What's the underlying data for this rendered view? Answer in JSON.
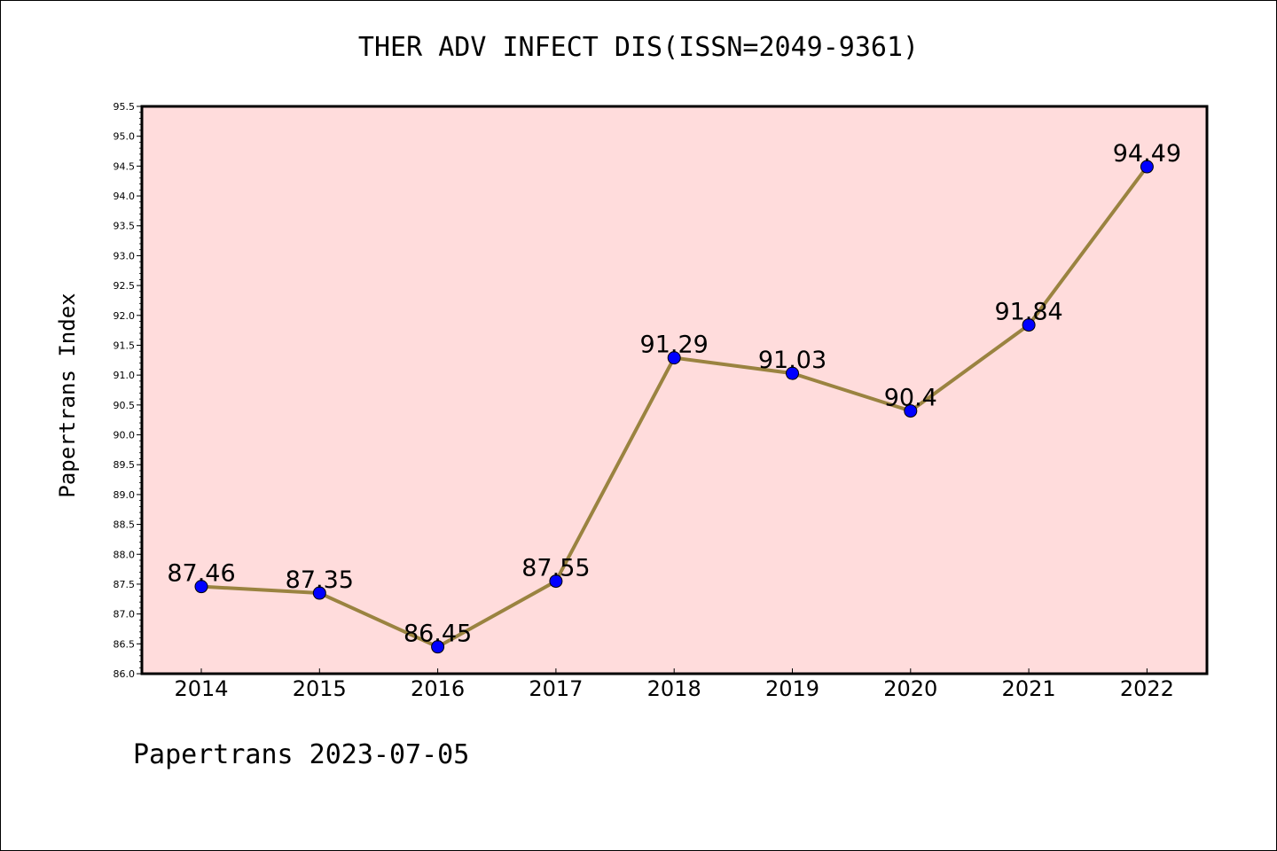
{
  "chart_data": {
    "type": "line",
    "title": "THER ADV INFECT DIS(ISSN=2049-9361)",
    "ylabel": "Papertrans Index",
    "xlabel": "",
    "categories": [
      "2014",
      "2015",
      "2016",
      "2017",
      "2018",
      "2019",
      "2020",
      "2021",
      "2022"
    ],
    "values": [
      87.46,
      87.35,
      86.45,
      87.55,
      91.29,
      91.03,
      90.4,
      91.84,
      94.49
    ],
    "data_labels": [
      "87.46",
      "87.35",
      "86.45",
      "87.55",
      "91.29",
      "91.03",
      "90.4",
      "91.84",
      "94.49"
    ],
    "ylim": [
      86.0,
      95.5
    ],
    "yticks": [
      "86.0",
      "86.5",
      "87.0",
      "87.5",
      "88.0",
      "88.5",
      "89.0",
      "89.5",
      "90.0",
      "90.5",
      "91.0",
      "91.5",
      "92.0",
      "92.5",
      "93.0",
      "93.5",
      "94.0",
      "94.5",
      "95.0",
      "95.5"
    ],
    "grid": false,
    "legend": "none",
    "colors": {
      "plot_background": "#ffdcdc",
      "line": "#9a8340",
      "marker": "#0000ff"
    }
  },
  "footer": "Papertrans 2023-07-05"
}
